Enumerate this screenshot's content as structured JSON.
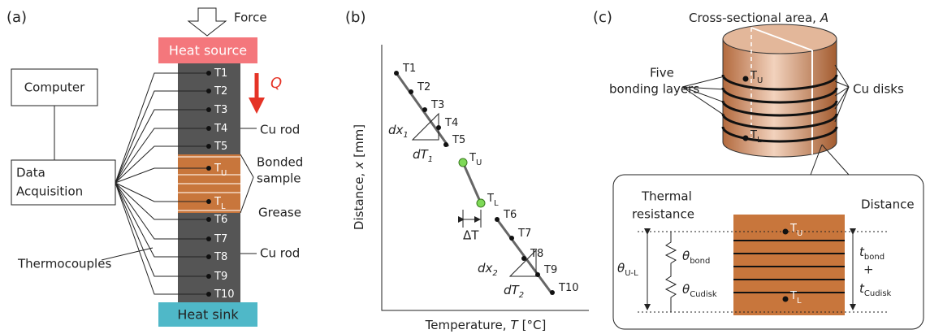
{
  "sensors": [
    {
      "text": "T1"
    },
    {
      "text": "T2"
    },
    {
      "text": "T3"
    },
    {
      "text": "T4"
    },
    {
      "text": "T5"
    },
    {
      "text": "T",
      "sub": "U"
    },
    {
      "text": "T",
      "sub": "L"
    },
    {
      "text": "T6"
    },
    {
      "text": "T7"
    },
    {
      "text": "T8"
    },
    {
      "text": "T9"
    },
    {
      "text": "T10"
    }
  ],
  "panel_a": {
    "label": "(a)",
    "force": "Force",
    "heat_source": "Heat source",
    "heat_sink": "Heat sink",
    "heat_flow": "Q",
    "computer": "Computer",
    "daq": [
      "Data",
      "Acquisition"
    ],
    "cu_rod_top": "Cu rod",
    "bonded_sample": [
      "Bonded",
      "sample"
    ],
    "grease": "Grease",
    "cu_rod_bottom": "Cu rod",
    "thermocouples": "Thermocouples"
  },
  "panel_b": {
    "label": "(b)",
    "y_axis": [
      "Distance,",
      "x",
      "[mm]"
    ],
    "x_axis": [
      "Temperature,",
      "T",
      "[°C]"
    ],
    "slope1": {
      "dx": [
        "dx",
        "1"
      ],
      "dT": [
        "dT",
        "1"
      ]
    },
    "delta_t": "ΔT",
    "slope2": {
      "dx": [
        "dx",
        "2"
      ],
      "dT": [
        "dT",
        "2"
      ]
    }
  },
  "panel_c": {
    "label": "(c)",
    "area": [
      "Cross-sectional area,",
      "A"
    ],
    "bonding_layers": [
      "Five",
      "bonding layers"
    ],
    "cu_disks": "Cu disks",
    "thermal_resistance": [
      "Thermal",
      "resistance"
    ],
    "distance": "Distance",
    "theta_bond": [
      "θ",
      "bond"
    ],
    "theta_cudisk": [
      "θ",
      "Cudisk"
    ],
    "theta_ul": [
      "θ",
      "U-L"
    ],
    "t_bond": [
      "t",
      "bond"
    ],
    "plus": "+",
    "t_cudisk": [
      "t",
      "Cudisk"
    ]
  }
}
